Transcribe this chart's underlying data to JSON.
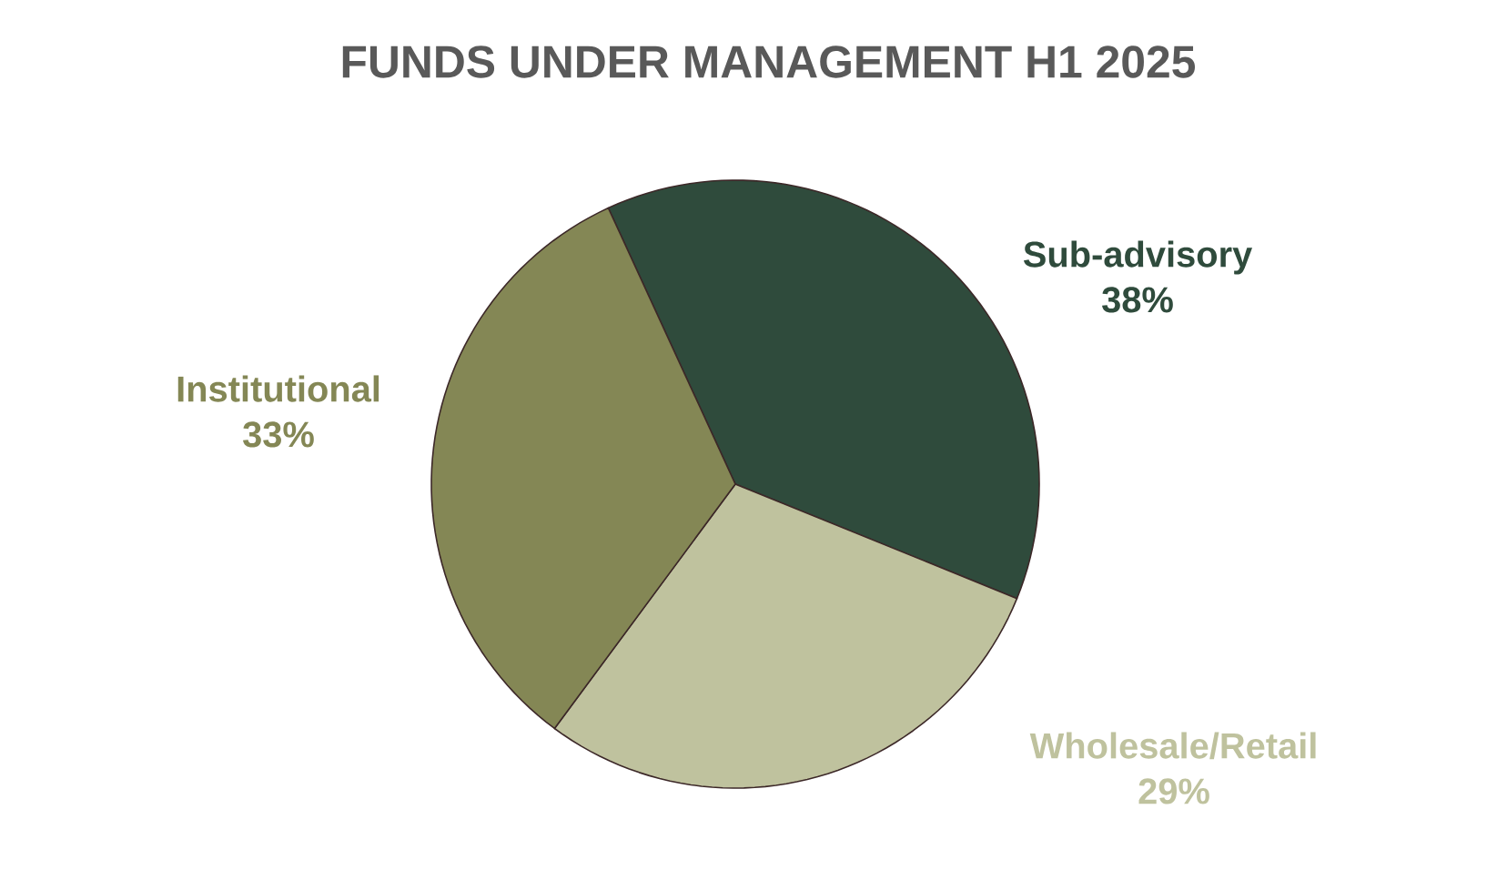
{
  "chart_data": {
    "type": "pie",
    "title": "FUNDS UNDER MANAGEMENT H1 2025",
    "categories": [
      "Sub-advisory",
      "Wholesale/Retail",
      "Institutional"
    ],
    "values": [
      38,
      29,
      33
    ],
    "value_labels": [
      "38%",
      "29%",
      "33%"
    ],
    "colors": [
      "#2f4b3c",
      "#bfc29e",
      "#848755"
    ]
  }
}
